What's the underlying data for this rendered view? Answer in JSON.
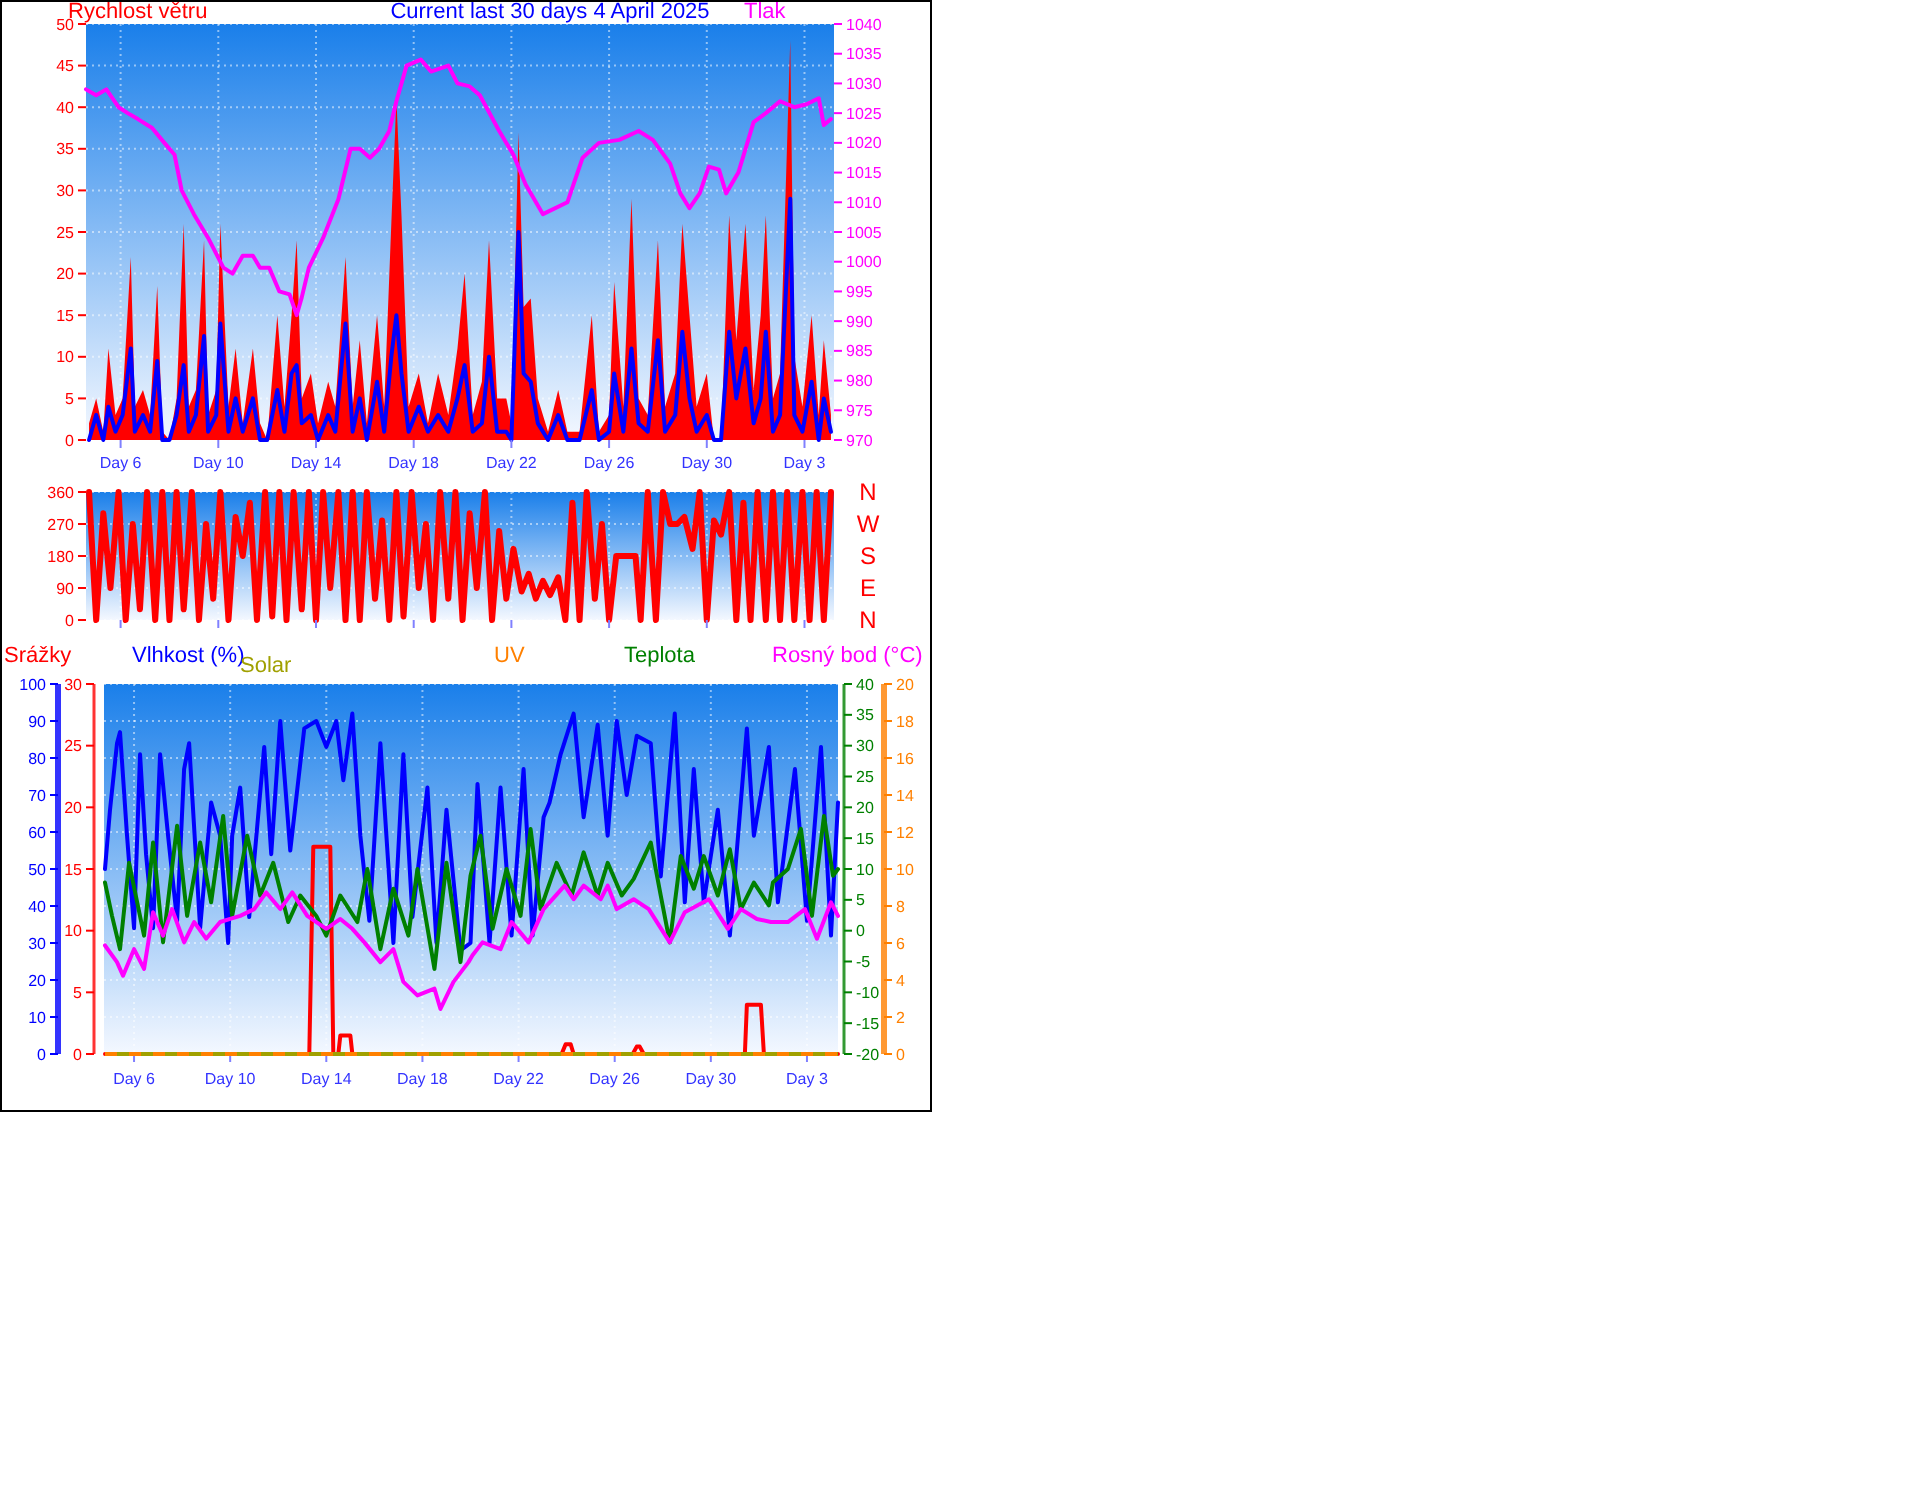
{
  "chart_data": [
    {
      "type": "line",
      "title": "Current last 30 days 4 April 2025",
      "ylabel": "Rychlost větru",
      "y2label": "Tlak",
      "xlim": [
        "2025-03-04T14:00",
        "2025-04-04T05:00"
      ],
      "xticks": [
        {
          "value": "2025-03-06",
          "label": "Day 6"
        },
        {
          "value": "2025-03-10",
          "label": "Day 10"
        },
        {
          "value": "2025-03-14",
          "label": "Day 14"
        },
        {
          "value": "2025-03-18",
          "label": "Day 18"
        },
        {
          "value": "2025-03-22",
          "label": "Day 22"
        },
        {
          "value": "2025-03-26",
          "label": "Day 26"
        },
        {
          "value": "2025-03-30",
          "label": "Day 30"
        },
        {
          "value": "2025-04-03",
          "label": "Day 3"
        }
      ],
      "ylim": [
        0,
        50
      ],
      "yticks": [
        0,
        5,
        10,
        15,
        20,
        25,
        30,
        35,
        40,
        45,
        50
      ],
      "y2lim": [
        970,
        1040
      ],
      "y2ticks": [
        970,
        975,
        980,
        985,
        990,
        995,
        1000,
        1005,
        1010,
        1015,
        1020,
        1025,
        1030,
        1035,
        1040
      ],
      "grid": true,
      "x": [
        "2025-03-04T17:00",
        "2025-03-05T00:00",
        "2025-03-05T07:00",
        "2025-03-05T12:00",
        "2025-03-05T19:00",
        "2025-03-06T02:00",
        "2025-03-06T10:00",
        "2025-03-06T14:00",
        "2025-03-06T22:00",
        "2025-03-07T05:00",
        "2025-03-07T12:00",
        "2025-03-07T17:00",
        "2025-03-08T00:00",
        "2025-03-08T07:00",
        "2025-03-08T14:00",
        "2025-03-08T19:00",
        "2025-03-09T02:00",
        "2025-03-09T10:00",
        "2025-03-09T14:00",
        "2025-03-09T22:00",
        "2025-03-10T02:00",
        "2025-03-10T10:00",
        "2025-03-10T17:00",
        "2025-03-11T00:00",
        "2025-03-11T10:00",
        "2025-03-11T17:00",
        "2025-03-12T00:00",
        "2025-03-12T10:00",
        "2025-03-12T17:00",
        "2025-03-13T00:00",
        "2025-03-13T05:00",
        "2025-03-13T10:00",
        "2025-03-13T19:00",
        "2025-03-14T02:00",
        "2025-03-14T12:00",
        "2025-03-14T19:00",
        "2025-03-15T05:00",
        "2025-03-15T12:00",
        "2025-03-15T19:00",
        "2025-03-16T02:00",
        "2025-03-16T12:00",
        "2025-03-16T19:00",
        "2025-03-17T02:00",
        "2025-03-17T07:00",
        "2025-03-17T12:00",
        "2025-03-17T19:00",
        "2025-03-18T05:00",
        "2025-03-18T14:00",
        "2025-03-19T00:00",
        "2025-03-19T10:00",
        "2025-03-19T19:00",
        "2025-03-20T02:00",
        "2025-03-20T10:00",
        "2025-03-20T19:00",
        "2025-03-21T02:00",
        "2025-03-21T10:00",
        "2025-03-21T19:00",
        "2025-03-22T00:00",
        "2025-03-22T07:00",
        "2025-03-22T12:00",
        "2025-03-22T19:00",
        "2025-03-23T02:00",
        "2025-03-23T12:00",
        "2025-03-23T22:00",
        "2025-03-24T07:00",
        "2025-03-24T19:00",
        "2025-03-25T07:00",
        "2025-03-25T14:00",
        "2025-03-26T00:00",
        "2025-03-26T05:00",
        "2025-03-26T14:00",
        "2025-03-26T22:00",
        "2025-03-27T05:00",
        "2025-03-27T14:00",
        "2025-03-28T00:00",
        "2025-03-28T07:00",
        "2025-03-28T17:00",
        "2025-03-29T00:00",
        "2025-03-29T07:00",
        "2025-03-29T14:00",
        "2025-03-30T00:00",
        "2025-03-30T07:00",
        "2025-03-30T14:00",
        "2025-03-30T22:00",
        "2025-03-31T05:00",
        "2025-03-31T14:00",
        "2025-03-31T22:00",
        "2025-04-01T05:00",
        "2025-04-01T10:00",
        "2025-04-01T17:00",
        "2025-04-02T00:00",
        "2025-04-02T10:00",
        "2025-04-02T14:00",
        "2025-04-02T22:00",
        "2025-04-03T07:00",
        "2025-04-03T14:00",
        "2025-04-03T19:00",
        "2025-04-04T02:00"
      ],
      "series": [
        {
          "type": "area",
          "color": "#ff0000",
          "values": [
            2,
            5,
            1,
            11,
            3,
            5,
            22,
            4,
            6,
            3,
            18.5,
            1,
            0,
            5,
            26,
            4,
            6,
            24,
            3,
            6,
            26,
            4,
            11,
            2,
            11,
            2,
            0,
            15,
            4,
            15,
            24,
            5,
            8,
            2,
            7,
            4,
            22,
            4,
            12,
            2,
            15,
            4,
            26,
            41,
            27,
            4,
            8,
            2,
            8,
            3,
            11,
            20,
            3,
            7,
            24,
            5,
            5,
            2,
            37,
            16,
            17,
            5,
            1,
            6,
            1,
            1,
            15,
            1,
            3,
            19,
            4,
            29,
            5,
            3,
            24,
            4,
            8,
            26,
            15,
            4,
            8,
            0,
            0,
            27,
            12,
            26,
            6,
            15,
            27,
            5,
            8,
            48,
            10,
            4,
            15,
            3,
            12,
            3
          ]
        },
        {
          "type": "line",
          "color": "#0000ff",
          "values": [
            0,
            3,
            0,
            4,
            1,
            3,
            11,
            1,
            3,
            1,
            9.5,
            0,
            0,
            3,
            9,
            1,
            3,
            12.5,
            1,
            3,
            14,
            1,
            5,
            1,
            5,
            0,
            0,
            6,
            1,
            8,
            9,
            2,
            3,
            0,
            3,
            1,
            14,
            1,
            5,
            0,
            7,
            1,
            10,
            15,
            8,
            1,
            4,
            1,
            3,
            1,
            5,
            9,
            1,
            2,
            10,
            1,
            1,
            0,
            25,
            8,
            7,
            2,
            0,
            3,
            0,
            0,
            6,
            0,
            1,
            8,
            1,
            11,
            2,
            1,
            12,
            1,
            3,
            13,
            5,
            1,
            3,
            0,
            0,
            13,
            5,
            11,
            2,
            5,
            13,
            1,
            3,
            29,
            3,
            1,
            7,
            0,
            5,
            1
          ]
        },
        {
          "axis": "y2",
          "color": "#ff00ff",
          "x": [
            "2025-03-04T14:00",
            "2025-03-05T00:00",
            "2025-03-05T10:00",
            "2025-03-05T22:00",
            "2025-03-06T07:00",
            "2025-03-06T17:00",
            "2025-03-07T07:00",
            "2025-03-07T19:00",
            "2025-03-08T05:00",
            "2025-03-08T12:00",
            "2025-03-09T00:00",
            "2025-03-09T14:00",
            "2025-03-10T05:00",
            "2025-03-10T14:00",
            "2025-03-11T00:00",
            "2025-03-11T10:00",
            "2025-03-11T17:00",
            "2025-03-12T02:00",
            "2025-03-12T12:00",
            "2025-03-12T22:00",
            "2025-03-13T05:00",
            "2025-03-13T10:00",
            "2025-03-13T17:00",
            "2025-03-14T07:00",
            "2025-03-14T22:00",
            "2025-03-15T10:00",
            "2025-03-15T19:00",
            "2025-03-16T05:00",
            "2025-03-16T14:00",
            "2025-03-17T00:00",
            "2025-03-17T07:00",
            "2025-03-17T17:00",
            "2025-03-18T07:00",
            "2025-03-18T17:00",
            "2025-03-19T10:00",
            "2025-03-19T19:00",
            "2025-03-20T07:00",
            "2025-03-20T17:00",
            "2025-03-21T12:00",
            "2025-03-22T02:00",
            "2025-03-22T14:00",
            "2025-03-23T07:00",
            "2025-03-24T07:00",
            "2025-03-24T22:00",
            "2025-03-25T14:00",
            "2025-03-26T10:00",
            "2025-03-27T05:00",
            "2025-03-27T19:00",
            "2025-03-28T12:00",
            "2025-03-28T22:00",
            "2025-03-29T07:00",
            "2025-03-29T17:00",
            "2025-03-30T02:00",
            "2025-03-30T12:00",
            "2025-03-30T19:00",
            "2025-03-31T07:00",
            "2025-03-31T22:00",
            "2025-04-01T10:00",
            "2025-04-02T00:00",
            "2025-04-02T14:00",
            "2025-04-03T02:00",
            "2025-04-03T14:00",
            "2025-04-03T19:00",
            "2025-04-04T02:00"
          ],
          "values": [
            1029,
            1028,
            1029,
            1026,
            1025,
            1024,
            1022.5,
            1020,
            1018,
            1012,
            1008,
            1004,
            999,
            998,
            1001,
            1001,
            999,
            999,
            995,
            994.5,
            991,
            994,
            999,
            1004,
            1010.5,
            1019,
            1019,
            1017.5,
            1019,
            1022,
            1027,
            1033,
            1034,
            1032,
            1033,
            1030,
            1029.5,
            1028,
            1022,
            1018,
            1013,
            1008,
            1010,
            1017.5,
            1020,
            1020.5,
            1022,
            1020.5,
            1016.5,
            1011.5,
            1009,
            1011.5,
            1016,
            1015.5,
            1011.5,
            1015,
            1023.5,
            1025,
            1027,
            1026,
            1026.5,
            1027.5,
            1023,
            1024
          ]
        }
      ]
    },
    {
      "type": "line",
      "xlim": [
        "2025-03-04T14:00",
        "2025-04-04T05:00"
      ],
      "xticks": [
        "2025-03-06",
        "2025-03-10",
        "2025-03-14",
        "2025-03-18",
        "2025-03-22",
        "2025-03-26",
        "2025-03-30",
        "2025-04-03"
      ],
      "tick_labels": "y",
      "ylim": [
        0,
        360
      ],
      "yticks": [
        0,
        90,
        180,
        270,
        360
      ],
      "grid": true,
      "annotations": [
        "N",
        "W",
        "S",
        "E",
        "N"
      ],
      "series": [
        {
          "color": "#ff0000",
          "x": [
            "2025-03-04T17:00",
            "2025-03-05T00:00",
            "2025-03-05T07:00",
            "2025-03-05T14:00",
            "2025-03-05T22:00",
            "2025-03-06T05:00",
            "2025-03-06T12:00",
            "2025-03-06T19:00",
            "2025-03-07T02:00",
            "2025-03-07T10:00",
            "2025-03-07T17:00",
            "2025-03-08T00:00",
            "2025-03-08T07:00",
            "2025-03-08T14:00",
            "2025-03-08T22:00",
            "2025-03-09T05:00",
            "2025-03-09T12:00",
            "2025-03-09T19:00",
            "2025-03-10T02:00",
            "2025-03-10T10:00",
            "2025-03-10T17:00",
            "2025-03-11T00:00",
            "2025-03-11T07:00",
            "2025-03-11T14:00",
            "2025-03-11T22:00",
            "2025-03-12T05:00",
            "2025-03-12T12:00",
            "2025-03-12T19:00",
            "2025-03-13T02:00",
            "2025-03-13T10:00",
            "2025-03-13T17:00",
            "2025-03-14T00:00",
            "2025-03-14T07:00",
            "2025-03-14T14:00",
            "2025-03-14T22:00",
            "2025-03-15T05:00",
            "2025-03-15T12:00",
            "2025-03-15T19:00",
            "2025-03-16T02:00",
            "2025-03-16T10:00",
            "2025-03-16T17:00",
            "2025-03-17T00:00",
            "2025-03-17T07:00",
            "2025-03-17T14:00",
            "2025-03-17T22:00",
            "2025-03-18T05:00",
            "2025-03-18T12:00",
            "2025-03-18T19:00",
            "2025-03-19T02:00",
            "2025-03-19T10:00",
            "2025-03-19T17:00",
            "2025-03-20T00:00",
            "2025-03-20T07:00",
            "2025-03-20T14:00",
            "2025-03-20T22:00",
            "2025-03-21T05:00",
            "2025-03-21T12:00",
            "2025-03-21T19:00",
            "2025-03-22T02:00",
            "2025-03-22T10:00",
            "2025-03-22T17:00",
            "2025-03-23T00:00",
            "2025-03-23T07:00",
            "2025-03-23T14:00",
            "2025-03-23T22:00",
            "2025-03-24T05:00",
            "2025-03-24T12:00",
            "2025-03-24T19:00",
            "2025-03-25T02:00",
            "2025-03-25T10:00",
            "2025-03-25T17:00",
            "2025-03-26T00:00",
            "2025-03-26T07:00",
            "2025-03-26T17:00",
            "2025-03-27T02:00",
            "2025-03-27T07:00",
            "2025-03-27T14:00",
            "2025-03-27T22:00",
            "2025-03-28T05:00",
            "2025-03-28T12:00",
            "2025-03-28T19:00",
            "2025-03-29T02:00",
            "2025-03-29T10:00",
            "2025-03-29T17:00",
            "2025-03-30T00:00",
            "2025-03-30T07:00",
            "2025-03-30T14:00",
            "2025-03-30T22:00",
            "2025-03-31T05:00",
            "2025-03-31T12:00",
            "2025-03-31T19:00",
            "2025-04-01T02:00",
            "2025-04-01T10:00",
            "2025-04-01T17:00",
            "2025-04-02T00:00",
            "2025-04-02T07:00",
            "2025-04-02T14:00",
            "2025-04-02T22:00",
            "2025-04-03T05:00",
            "2025-04-03T12:00",
            "2025-04-03T19:00",
            "2025-04-04T02:00"
          ],
          "values": [
            360,
            0,
            300,
            90,
            360,
            0,
            270,
            30,
            360,
            0,
            360,
            0,
            360,
            30,
            360,
            0,
            270,
            60,
            360,
            0,
            290,
            180,
            330,
            0,
            360,
            10,
            360,
            0,
            360,
            30,
            360,
            0,
            360,
            90,
            360,
            0,
            360,
            0,
            360,
            60,
            280,
            0,
            360,
            10,
            360,
            90,
            270,
            0,
            360,
            60,
            360,
            0,
            300,
            90,
            360,
            0,
            250,
            60,
            200,
            80,
            130,
            60,
            110,
            70,
            120,
            0,
            330,
            0,
            360,
            60,
            270,
            0,
            180,
            180,
            180,
            0,
            360,
            0,
            360,
            270,
            270,
            290,
            200,
            360,
            0,
            280,
            240,
            360,
            0,
            330,
            0,
            360,
            0,
            360,
            0,
            360,
            0,
            360,
            0,
            360,
            0,
            360
          ]
        }
      ]
    },
    {
      "type": "line",
      "xlim": [
        "2025-03-04T18:00",
        "2025-04-04T07:00"
      ],
      "xticks": [
        {
          "value": "2025-03-06",
          "label": "Day 6"
        },
        {
          "value": "2025-03-10",
          "label": "Day 10"
        },
        {
          "value": "2025-03-14",
          "label": "Day 14"
        },
        {
          "value": "2025-03-18",
          "label": "Day 18"
        },
        {
          "value": "2025-03-22",
          "label": "Day 22"
        },
        {
          "value": "2025-03-26",
          "label": "Day 26"
        },
        {
          "value": "2025-03-30",
          "label": "Day 30"
        },
        {
          "value": "2025-04-03",
          "label": "Day 3"
        }
      ],
      "ylim": [
        0,
        100
      ],
      "yticks": [
        0,
        10,
        20,
        30,
        40,
        50,
        60,
        70,
        80,
        90,
        100
      ],
      "y2lim": [
        0,
        30
      ],
      "y2ticks": [
        0,
        5,
        10,
        15,
        20,
        25,
        30
      ],
      "y3lim": [
        -20,
        40
      ],
      "y3ticks": [
        -20,
        -15,
        -10,
        -5,
        0,
        5,
        10,
        15,
        20,
        25,
        30,
        35,
        40
      ],
      "grid": true,
      "legend": "top",
      "series": [
        {
          "name": "Srážky",
          "axis": "y2",
          "color": "#ff0000",
          "x": [
            "2025-03-04T19:00",
            "2025-03-13T07:00",
            "2025-03-13T11:00",
            "2025-03-14T04:00",
            "2025-03-14T07:00",
            "2025-03-14T12:00",
            "2025-03-14T14:00",
            "2025-03-15T00:00",
            "2025-03-15T02:00",
            "2025-03-23T19:00",
            "2025-03-23T23:00",
            "2025-03-24T04:00",
            "2025-03-24T07:00",
            "2025-03-26T18:00",
            "2025-03-26T22:00",
            "2025-03-27T01:00",
            "2025-03-27T05:00",
            "2025-03-31T10:00",
            "2025-03-31T12:00",
            "2025-04-01T02:00",
            "2025-04-01T05:00",
            "2025-04-04T07:00"
          ],
          "values": [
            0,
            0,
            16.8,
            16.8,
            0,
            0,
            1.5,
            1.5,
            0,
            0,
            0.8,
            0.8,
            0,
            0,
            0.6,
            0.6,
            0,
            0,
            4,
            4,
            0,
            0
          ]
        },
        {
          "name": "Vlhkost (%)",
          "color": "#0000ff",
          "x": [
            "2025-03-04T19:00",
            "2025-03-05T00:00",
            "2025-03-05T07:00",
            "2025-03-05T10:00",
            "2025-03-05T17:00",
            "2025-03-06T00:00",
            "2025-03-06T06:00",
            "2025-03-06T12:00",
            "2025-03-06T19:00",
            "2025-03-07T02:00",
            "2025-03-07T10:00",
            "2025-03-07T19:00",
            "2025-03-08T02:00",
            "2025-03-08T07:00",
            "2025-03-08T18:00",
            "2025-03-09T05:00",
            "2025-03-09T14:00",
            "2025-03-09T22:00",
            "2025-03-10T02:00",
            "2025-03-10T10:00",
            "2025-03-10T19:00",
            "2025-03-11T10:00",
            "2025-03-11T17:00",
            "2025-03-12T02:00",
            "2025-03-12T12:00",
            "2025-03-13T02:00",
            "2025-03-13T14:00",
            "2025-03-14T00:00",
            "2025-03-14T10:00",
            "2025-03-14T17:00",
            "2025-03-15T02:00",
            "2025-03-15T10:00",
            "2025-03-15T19:00",
            "2025-03-16T06:00",
            "2025-03-16T19:00",
            "2025-03-17T05:00",
            "2025-03-17T14:00",
            "2025-03-18T05:00",
            "2025-03-18T14:00",
            "2025-03-19T00:00",
            "2025-03-19T14:00",
            "2025-03-20T00:00",
            "2025-03-20T07:00",
            "2025-03-20T19:00",
            "2025-03-21T06:00",
            "2025-03-21T17:00",
            "2025-03-22T05:00",
            "2025-03-22T14:00",
            "2025-03-23T01:00",
            "2025-03-23T07:00",
            "2025-03-23T18:00",
            "2025-03-24T07:00",
            "2025-03-24T17:00",
            "2025-03-25T07:00",
            "2025-03-25T17:00",
            "2025-03-26T02:00",
            "2025-03-26T12:00",
            "2025-03-26T22:00",
            "2025-03-27T12:00",
            "2025-03-27T22:00",
            "2025-03-28T12:00",
            "2025-03-28T22:00",
            "2025-03-29T07:00",
            "2025-03-29T17:00",
            "2025-03-30T07:00",
            "2025-03-30T19:00",
            "2025-03-31T12:00",
            "2025-03-31T19:00",
            "2025-04-01T10:00",
            "2025-04-01T19:00",
            "2025-04-02T12:00",
            "2025-04-03T00:00",
            "2025-04-03T14:00",
            "2025-04-04T00:00",
            "2025-04-04T07:00"
          ],
          "values": [
            50,
            66,
            84,
            87,
            59,
            34,
            81,
            54,
            34,
            81,
            59,
            36,
            77,
            84,
            34,
            68,
            59,
            30,
            59,
            72,
            37,
            83,
            54,
            90,
            55,
            88,
            90,
            83,
            90,
            74,
            92,
            59,
            36,
            84,
            30,
            81,
            37,
            72,
            30,
            66,
            28,
            30,
            73,
            30,
            72,
            32,
            77,
            32,
            64,
            68,
            81,
            92,
            64,
            89,
            59,
            90,
            70,
            86,
            84,
            48,
            92,
            41,
            77,
            41,
            66,
            32,
            88,
            59,
            83,
            41,
            77,
            36,
            83,
            32,
            68
          ]
        },
        {
          "name": "Teplota",
          "axis": "y3",
          "color": "#008000",
          "x": [
            "2025-03-04T19:00",
            "2025-03-05T02:00",
            "2025-03-05T10:00",
            "2025-03-05T19:00",
            "2025-03-06T10:00",
            "2025-03-06T19:00",
            "2025-03-07T05:00",
            "2025-03-07T19:00",
            "2025-03-08T05:00",
            "2025-03-08T18:00",
            "2025-03-09T05:00",
            "2025-03-09T17:00",
            "2025-03-10T02:00",
            "2025-03-10T17:00",
            "2025-03-11T06:00",
            "2025-03-11T19:00",
            "2025-03-12T10:00",
            "2025-03-12T22:00",
            "2025-03-13T14:00",
            "2025-03-14T00:00",
            "2025-03-14T14:00",
            "2025-03-15T07:00",
            "2025-03-15T17:00",
            "2025-03-16T06:00",
            "2025-03-16T19:00",
            "2025-03-17T10:00",
            "2025-03-17T19:00",
            "2025-03-18T12:00",
            "2025-03-19T00:00",
            "2025-03-19T14:00",
            "2025-03-20T00:00",
            "2025-03-20T10:00",
            "2025-03-20T22:00",
            "2025-03-21T12:00",
            "2025-03-22T02:00",
            "2025-03-22T12:00",
            "2025-03-22T22:00",
            "2025-03-23T14:00",
            "2025-03-24T05:00",
            "2025-03-24T17:00",
            "2025-03-25T07:00",
            "2025-03-25T17:00",
            "2025-03-26T07:00",
            "2025-03-26T19:00",
            "2025-03-27T12:00",
            "2025-03-27T22:00",
            "2025-03-28T07:00",
            "2025-03-28T18:00",
            "2025-03-29T07:00",
            "2025-03-29T17:00",
            "2025-03-30T07:00",
            "2025-03-30T19:00",
            "2025-03-31T06:00",
            "2025-03-31T19:00",
            "2025-04-01T10:00",
            "2025-04-01T14:00",
            "2025-04-02T05:00",
            "2025-04-02T18:00",
            "2025-04-03T05:00",
            "2025-04-03T17:00",
            "2025-04-04T02:00",
            "2025-04-04T07:00"
          ],
          "values": [
            7.8,
            2.4,
            -3,
            11,
            -0.8,
            14.3,
            -1.9,
            17,
            2.4,
            14.3,
            4.6,
            18.6,
            2.4,
            15.4,
            5.7,
            11,
            1.4,
            5.7,
            2.4,
            -0.8,
            5.7,
            1.4,
            10,
            -3,
            6.8,
            -0.8,
            10,
            -6.2,
            11,
            -5.1,
            8.9,
            15.4,
            0.3,
            10,
            2.4,
            16.5,
            3.5,
            11,
            5.7,
            12.7,
            5.7,
            11,
            5.7,
            8.4,
            14.3,
            5.7,
            -1.9,
            12.1,
            6.8,
            12.1,
            5.7,
            13.2,
            3.5,
            7.8,
            4.1,
            7.8,
            10,
            16.5,
            2.4,
            18.6,
            8.9,
            10
          ]
        },
        {
          "name": "Rosný bod (°C)",
          "axis": "y3",
          "color": "#ff00ff",
          "x": [
            "2025-03-04T19:00",
            "2025-03-05T07:00",
            "2025-03-05T13:00",
            "2025-03-06T00:00",
            "2025-03-06T10:00",
            "2025-03-06T19:00",
            "2025-03-07T05:00",
            "2025-03-07T14:00",
            "2025-03-08T02:00",
            "2025-03-08T12:00",
            "2025-03-09T00:00",
            "2025-03-09T14:00",
            "2025-03-10T00:00",
            "2025-03-10T10:00",
            "2025-03-11T00:00",
            "2025-03-11T12:00",
            "2025-03-12T02:00",
            "2025-03-12T14:00",
            "2025-03-13T05:00",
            "2025-03-14T00:00",
            "2025-03-14T14:00",
            "2025-03-15T02:00",
            "2025-03-15T14:00",
            "2025-03-16T06:00",
            "2025-03-16T19:00",
            "2025-03-17T05:00",
            "2025-03-17T19:00",
            "2025-03-18T12:00",
            "2025-03-18T18:00",
            "2025-03-19T07:00",
            "2025-03-19T22:00",
            "2025-03-20T02:00",
            "2025-03-20T12:00",
            "2025-03-21T06:00",
            "2025-03-21T17:00",
            "2025-03-22T10:00",
            "2025-03-23T01:00",
            "2025-03-23T22:00",
            "2025-03-24T07:00",
            "2025-03-24T17:00",
            "2025-03-25T10:00",
            "2025-03-25T17:00",
            "2025-03-26T02:00",
            "2025-03-26T19:00",
            "2025-03-27T10:00",
            "2025-03-28T07:00",
            "2025-03-28T22:00",
            "2025-03-29T22:00",
            "2025-03-30T17:00",
            "2025-03-31T06:00",
            "2025-03-31T22:00",
            "2025-04-01T12:00",
            "2025-04-02T05:00",
            "2025-04-02T22:00",
            "2025-04-03T10:00",
            "2025-04-04T00:00",
            "2025-04-04T07:00"
          ],
          "values": [
            -2.4,
            -5.1,
            -7.3,
            -3,
            -6.2,
            3,
            -0.8,
            3.5,
            -1.9,
            1.4,
            -1.3,
            1.4,
            1.9,
            2.4,
            3.5,
            6.2,
            3.5,
            6.2,
            2.4,
            0.3,
            1.9,
            0.3,
            -1.9,
            -5.1,
            -3,
            -8.3,
            -10.5,
            -9.4,
            -12.7,
            -8.3,
            -5.1,
            -4,
            -1.9,
            -3,
            1.4,
            -1.9,
            3.5,
            7.3,
            5.1,
            7.3,
            5.1,
            7.3,
            3.5,
            5.1,
            3.5,
            -1.9,
            3,
            5.1,
            0.3,
            3.5,
            1.9,
            1.4,
            1.4,
            3.5,
            -1.3,
            4.6,
            2.4
          ]
        }
      ]
    },
    {
      "type": "line",
      "xlim": [
        "2025-03-04T18:00",
        "2025-04-04T07:00"
      ],
      "tick_labels": "y",
      "ylim": [
        0,
        20
      ],
      "yticks": [
        0,
        2,
        4,
        6,
        8,
        10,
        12,
        14,
        16,
        18,
        20
      ],
      "legend": "top",
      "series": [
        {
          "name": "UV",
          "color": "#ff8000",
          "line_style": "dashed",
          "x": [
            "2025-03-04T19:00",
            "2025-04-04T07:00"
          ],
          "values": [
            0,
            0
          ]
        },
        {
          "name": "Solar",
          "color": "#a0a000",
          "line_style": "dashed",
          "x": [
            "2025-03-04T19:00",
            "2025-04-04T07:00"
          ],
          "values": [
            0,
            0
          ]
        }
      ]
    }
  ]
}
